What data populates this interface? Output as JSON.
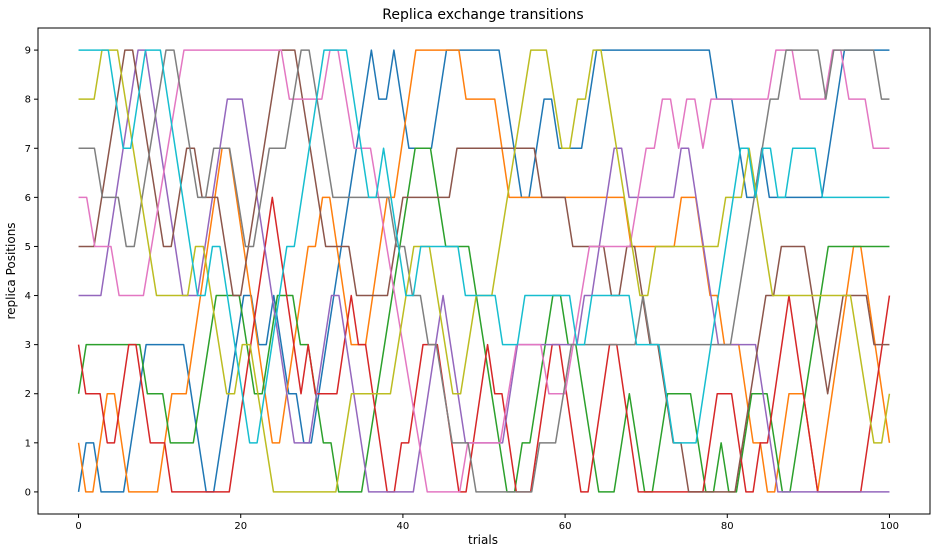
{
  "chart_data": {
    "type": "line",
    "title": "Replica exchange transitions",
    "xlabel": "trials",
    "ylabel": "replica Positions",
    "xlim": [
      -5,
      105
    ],
    "ylim": [
      -0.45,
      9.45
    ],
    "xticks": [
      0,
      20,
      40,
      60,
      80,
      100
    ],
    "yticks": [
      0,
      1,
      2,
      3,
      4,
      5,
      6,
      7,
      8,
      9
    ],
    "grid": false,
    "legend": "none",
    "series": [
      {
        "color": "#1f77b4",
        "y": [
          0,
          1,
          1,
          0,
          0,
          0,
          0,
          1,
          2,
          3,
          3,
          3,
          3,
          3,
          3,
          2,
          1,
          0,
          0,
          1,
          2,
          3,
          4,
          4,
          3,
          3,
          4,
          3,
          2,
          2,
          1,
          1,
          2,
          3,
          4,
          5,
          6,
          7,
          8,
          9,
          8,
          8,
          9,
          8,
          7,
          7,
          7,
          7,
          8,
          9,
          9,
          9,
          9,
          9,
          9,
          9,
          9,
          8,
          7,
          6,
          6,
          7,
          8,
          8,
          7,
          7,
          7,
          7,
          8,
          9,
          9,
          9,
          9,
          9,
          9,
          9,
          9,
          9,
          9,
          9,
          9,
          9,
          9,
          9,
          9,
          8,
          8,
          8,
          7,
          6,
          6,
          7,
          6,
          6,
          6,
          6,
          6,
          6,
          6,
          6,
          7,
          8,
          9,
          9,
          9,
          9,
          9,
          9,
          9
        ]
      },
      {
        "color": "#ff7f0e",
        "y": [
          1,
          0,
          0,
          1,
          2,
          2,
          1,
          0,
          0,
          0,
          0,
          0,
          1,
          2,
          2,
          2,
          3,
          4,
          5,
          6,
          7,
          7,
          6,
          5,
          4,
          3,
          2,
          1,
          1,
          2,
          3,
          4,
          5,
          5,
          6,
          6,
          5,
          4,
          3,
          3,
          3,
          4,
          5,
          6,
          6,
          7,
          8,
          9,
          9,
          9,
          9,
          9,
          9,
          9,
          8,
          8,
          8,
          8,
          8,
          7,
          6,
          6,
          6,
          6,
          6,
          6,
          6,
          6,
          6,
          6,
          6,
          6,
          6,
          6,
          6,
          6,
          6,
          5,
          5,
          5,
          5,
          5,
          5,
          5,
          6,
          6,
          6,
          5,
          4,
          4,
          3,
          3,
          3,
          2,
          1,
          1,
          0,
          0,
          1,
          2,
          2,
          2,
          1,
          0,
          1,
          2,
          3,
          4,
          5,
          5,
          4,
          3,
          2,
          1
        ]
      },
      {
        "color": "#2ca02c",
        "y": [
          2,
          3,
          3,
          3,
          3,
          3,
          3,
          3,
          3,
          2,
          2,
          2,
          1,
          1,
          1,
          1,
          2,
          3,
          4,
          4,
          4,
          4,
          3,
          2,
          2,
          3,
          4,
          4,
          4,
          3,
          3,
          2,
          1,
          1,
          0,
          0,
          0,
          0,
          1,
          2,
          3,
          4,
          5,
          6,
          7,
          7,
          7,
          6,
          5,
          5,
          5,
          5,
          4,
          3,
          2,
          1,
          0,
          0,
          1,
          1,
          2,
          3,
          4,
          4,
          3,
          3,
          2,
          1,
          0,
          0,
          0,
          1,
          2,
          1,
          0,
          0,
          1,
          2,
          2,
          2,
          2,
          1,
          0,
          0,
          1,
          0,
          0,
          1,
          2,
          2,
          2,
          1,
          0,
          0,
          1,
          2,
          3,
          4,
          5,
          5,
          5,
          5,
          5,
          5,
          5,
          5,
          5
        ]
      },
      {
        "color": "#d62728",
        "y": [
          3,
          2,
          2,
          2,
          1,
          1,
          2,
          3,
          3,
          2,
          1,
          1,
          1,
          0,
          0,
          0,
          0,
          0,
          0,
          0,
          0,
          0,
          1,
          2,
          3,
          4,
          5,
          6,
          5,
          4,
          3,
          2,
          3,
          2,
          2,
          2,
          2,
          3,
          4,
          3,
          3,
          2,
          1,
          0,
          0,
          1,
          1,
          2,
          3,
          3,
          3,
          2,
          1,
          0,
          0,
          1,
          2,
          3,
          2,
          2,
          1,
          0,
          0,
          0,
          1,
          2,
          3,
          3,
          2,
          1,
          0,
          0,
          1,
          2,
          3,
          3,
          2,
          1,
          0,
          0,
          0,
          0,
          0,
          0,
          0,
          0,
          0,
          0,
          1,
          2,
          2,
          2,
          1,
          0,
          0,
          1,
          1,
          2,
          3,
          4,
          3,
          2,
          1,
          0,
          0,
          0,
          0,
          0,
          0,
          0,
          1,
          2,
          3,
          4
        ]
      },
      {
        "color": "#9467bd",
        "y": [
          4,
          4,
          4,
          4,
          5,
          6,
          7,
          8,
          9,
          9,
          8,
          7,
          6,
          5,
          4,
          4,
          4,
          5,
          6,
          7,
          8,
          8,
          8,
          7,
          6,
          5,
          4,
          3,
          2,
          1,
          1,
          1,
          2,
          3,
          4,
          4,
          3,
          2,
          1,
          0,
          0,
          0,
          0,
          0,
          0,
          0,
          1,
          2,
          3,
          4,
          3,
          2,
          1,
          1,
          1,
          1,
          1,
          1,
          2,
          3,
          3,
          3,
          3,
          3,
          3,
          3,
          3,
          3,
          4,
          4,
          5,
          6,
          7,
          7,
          6,
          6,
          6,
          6,
          6,
          6,
          6,
          7,
          7,
          6,
          5,
          4,
          3,
          3,
          3,
          3,
          3,
          3,
          2,
          1,
          0,
          0,
          0,
          0,
          0,
          0,
          0,
          0,
          0,
          0,
          0,
          0,
          0,
          0,
          0,
          0
        ]
      },
      {
        "color": "#8c564b",
        "y": [
          5,
          5,
          5,
          6,
          7,
          8,
          9,
          9,
          8,
          7,
          6,
          5,
          5,
          6,
          7,
          7,
          6,
          6,
          6,
          5,
          4,
          4,
          5,
          6,
          7,
          8,
          9,
          9,
          9,
          8,
          7,
          6,
          5,
          5,
          5,
          5,
          4,
          4,
          4,
          4,
          4,
          5,
          6,
          6,
          6,
          6,
          6,
          6,
          6,
          7,
          7,
          7,
          7,
          7,
          7,
          7,
          7,
          7,
          7,
          7,
          6,
          6,
          6,
          6,
          5,
          5,
          5,
          5,
          5,
          4,
          4,
          5,
          5,
          4,
          3,
          3,
          2,
          1,
          1,
          0,
          0,
          0,
          0,
          0,
          0,
          0,
          1,
          2,
          3,
          4,
          4,
          5,
          5,
          5,
          5,
          4,
          3,
          2,
          3,
          4,
          4,
          4,
          4,
          3,
          3,
          3
        ]
      },
      {
        "color": "#e377c2",
        "y": [
          6,
          6,
          5,
          5,
          5,
          4,
          4,
          4,
          4,
          5,
          6,
          7,
          8,
          9,
          9,
          9,
          9,
          9,
          9,
          9,
          9,
          9,
          9,
          9,
          9,
          9,
          8,
          8,
          8,
          8,
          8,
          9,
          9,
          8,
          7,
          7,
          7,
          6,
          5,
          4,
          3,
          2,
          1,
          0,
          0,
          0,
          0,
          0,
          1,
          1,
          1,
          1,
          1,
          2,
          3,
          3,
          3,
          3,
          2,
          2,
          2,
          3,
          4,
          5,
          5,
          5,
          5,
          5,
          5,
          6,
          7,
          7,
          8,
          8,
          7,
          8,
          8,
          7,
          8,
          8,
          8,
          8,
          8,
          8,
          8,
          8,
          9,
          9,
          9,
          8,
          8,
          8,
          8,
          9,
          9,
          8,
          8,
          8,
          7,
          7,
          7
        ]
      },
      {
        "color": "#7f7f7f",
        "y": [
          7,
          7,
          7,
          6,
          6,
          6,
          5,
          5,
          6,
          7,
          8,
          9,
          9,
          8,
          7,
          6,
          6,
          7,
          7,
          7,
          6,
          5,
          5,
          6,
          7,
          7,
          7,
          8,
          9,
          9,
          8,
          7,
          6,
          6,
          6,
          6,
          6,
          6,
          6,
          6,
          5,
          5,
          4,
          4,
          3,
          3,
          2,
          1,
          1,
          1,
          0,
          0,
          0,
          0,
          0,
          0,
          0,
          0,
          1,
          1,
          1,
          2,
          3,
          3,
          3,
          3,
          3,
          3,
          3,
          3,
          3,
          4,
          3,
          3,
          3,
          3,
          3,
          3,
          3,
          3,
          3,
          3,
          3,
          4,
          5,
          6,
          7,
          8,
          8,
          9,
          9,
          9,
          9,
          9,
          8,
          9,
          9,
          9,
          9,
          9,
          9,
          8,
          8
        ]
      },
      {
        "color": "#bcbd22",
        "y": [
          8,
          8,
          8,
          9,
          9,
          9,
          8,
          7,
          6,
          5,
          4,
          4,
          4,
          4,
          4,
          5,
          5,
          4,
          3,
          2,
          2,
          3,
          3,
          2,
          1,
          0,
          0,
          0,
          0,
          0,
          0,
          0,
          0,
          0,
          1,
          2,
          2,
          2,
          2,
          2,
          2,
          3,
          4,
          5,
          5,
          5,
          4,
          3,
          2,
          2,
          3,
          4,
          4,
          4,
          5,
          6,
          7,
          8,
          9,
          9,
          9,
          8,
          7,
          7,
          8,
          8,
          9,
          9,
          8,
          7,
          6,
          5,
          4,
          4,
          5,
          5,
          5,
          5,
          5,
          5,
          5,
          5,
          5,
          6,
          6,
          6,
          7,
          6,
          5,
          4,
          4,
          4,
          4,
          4,
          4,
          4,
          4,
          4,
          4,
          4,
          3,
          2,
          1,
          1,
          2
        ]
      },
      {
        "color": "#17becf",
        "y": [
          9,
          9,
          9,
          9,
          9,
          8,
          7,
          7,
          8,
          9,
          9,
          9,
          8,
          7,
          6,
          5,
          4,
          4,
          5,
          5,
          4,
          3,
          2,
          1,
          1,
          2,
          3,
          4,
          5,
          5,
          6,
          7,
          8,
          9,
          9,
          9,
          9,
          8,
          7,
          6,
          6,
          7,
          6,
          5,
          4,
          4,
          5,
          5,
          5,
          5,
          5,
          5,
          4,
          4,
          4,
          4,
          4,
          3,
          3,
          3,
          4,
          4,
          4,
          4,
          4,
          4,
          4,
          3,
          3,
          4,
          4,
          4,
          4,
          4,
          4,
          3,
          3,
          3,
          3,
          2,
          1,
          1,
          1,
          1,
          2,
          3,
          4,
          5,
          6,
          7,
          7,
          6,
          7,
          7,
          6,
          6,
          7,
          7,
          7,
          7,
          6,
          6,
          6,
          6,
          6,
          6,
          6,
          6,
          6,
          6
        ]
      }
    ]
  }
}
